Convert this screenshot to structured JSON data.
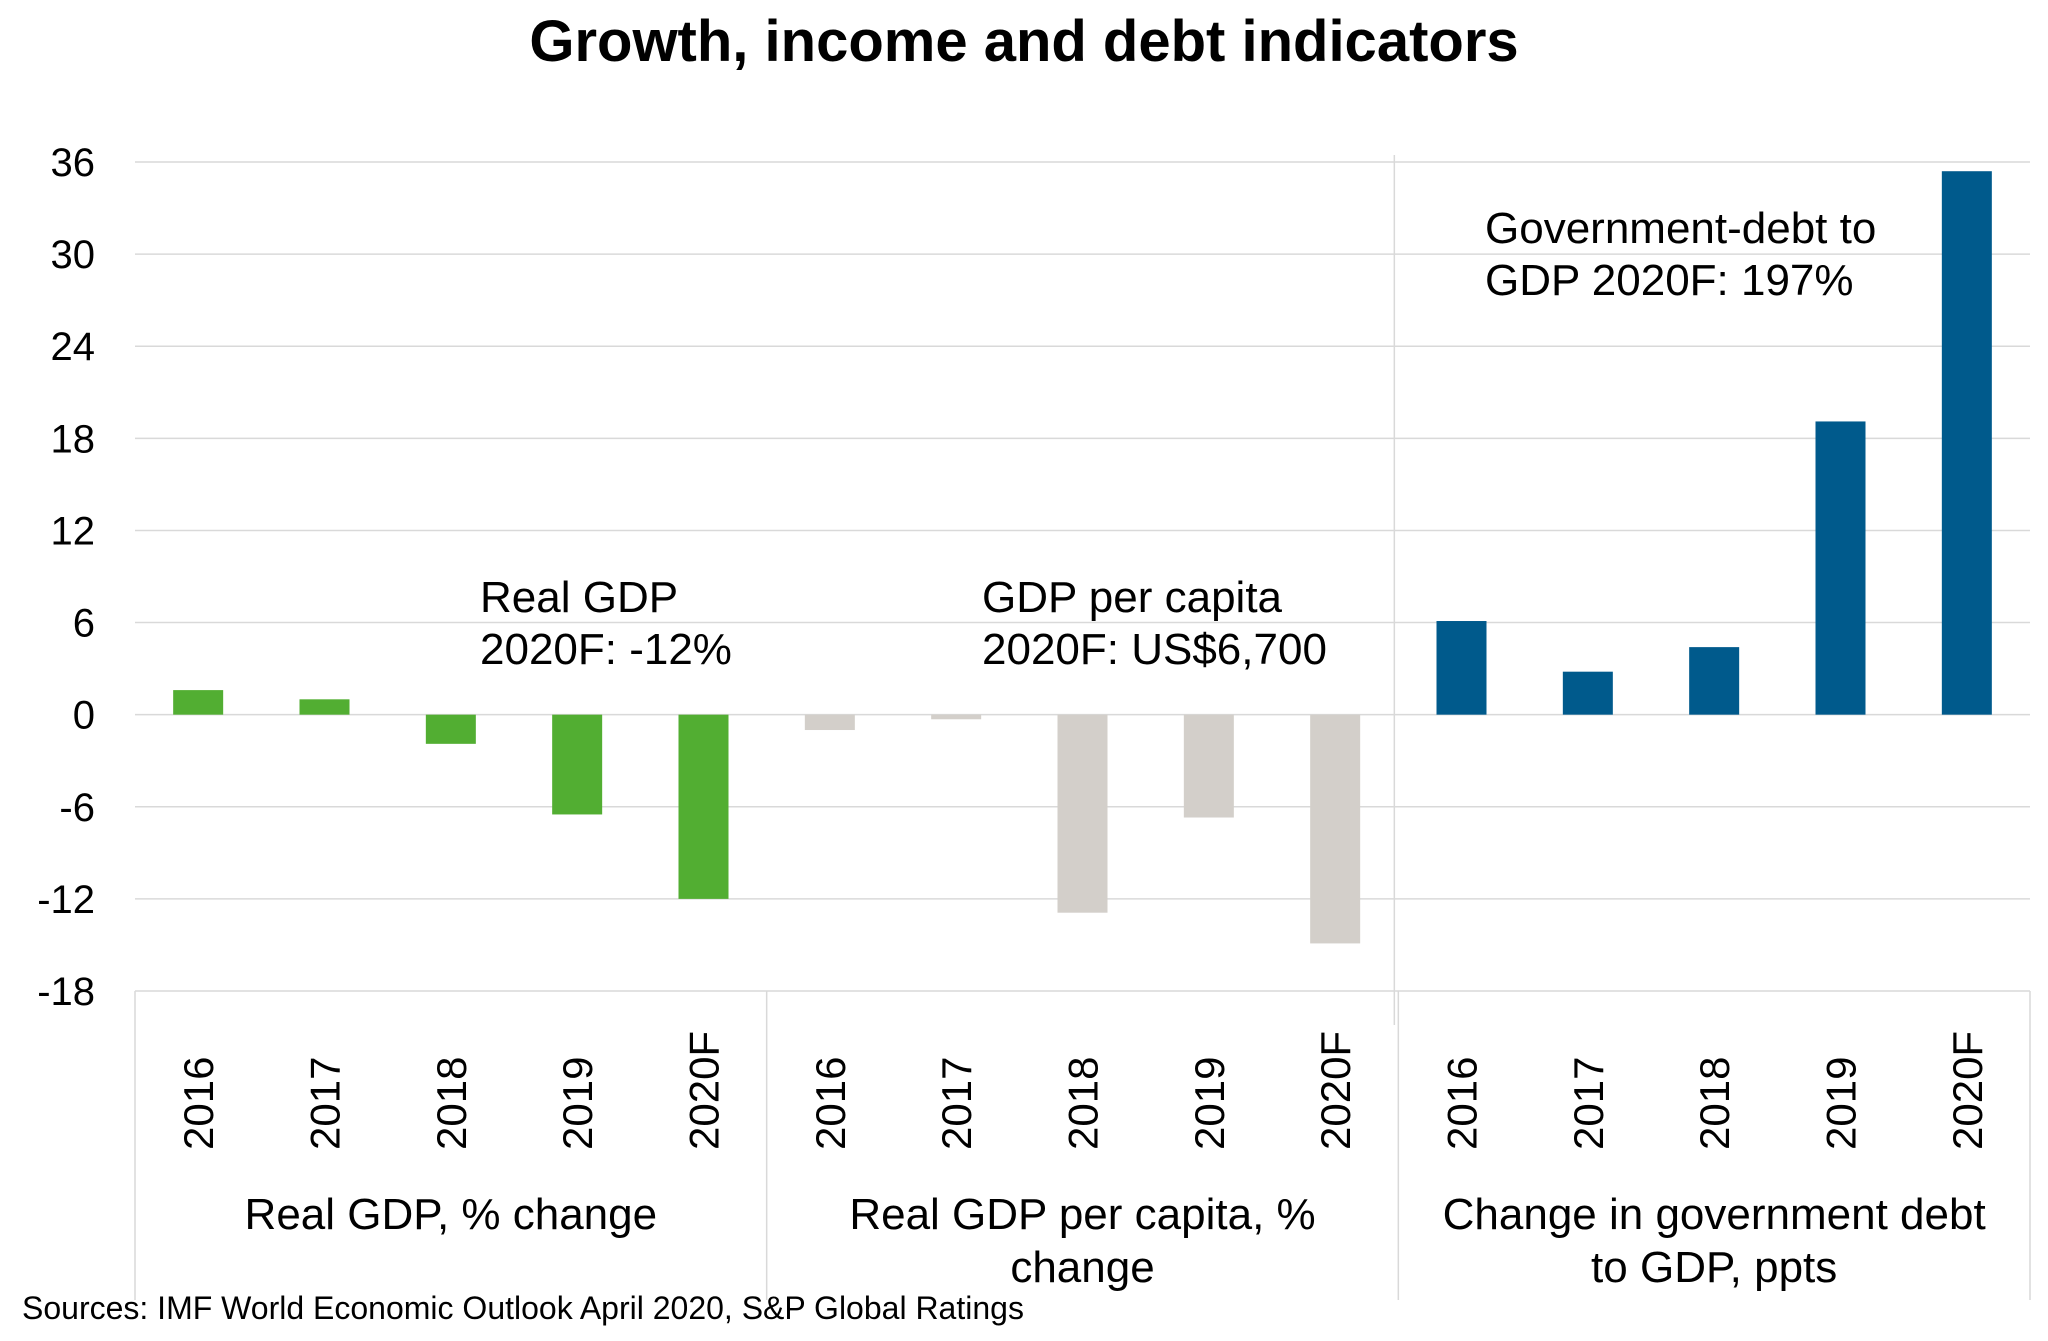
{
  "title": "Growth, income and debt indicators",
  "source": "Sources: IMF World Economic  Outlook April 2020, S&P Global Ratings",
  "colors": {
    "green": "#52ae32",
    "grey": "#d3cfca",
    "blue": "#005a8c",
    "grid": "#d9d9d9"
  },
  "chart_data": {
    "type": "bar",
    "title": "Growth, income and debt indicators",
    "ylim": [
      -18,
      36
    ],
    "yticks": [
      36,
      30,
      24,
      18,
      12,
      6,
      0,
      -6,
      -12,
      -18
    ],
    "grid": true,
    "groups": [
      {
        "name": "Real GDP, % change",
        "name_lines": [
          "Real GDP, % change"
        ],
        "color_key": "green",
        "categories": [
          "2016",
          "2017",
          "2018",
          "2019",
          "2020F"
        ],
        "values": [
          1.6,
          1.0,
          -1.9,
          -6.5,
          -12.0
        ],
        "annotation": [
          "Real GDP",
          "2020F: -12%"
        ]
      },
      {
        "name": "Real GDP per capita, % change",
        "name_lines": [
          "Real GDP per capita, %",
          "change"
        ],
        "color_key": "grey",
        "categories": [
          "2016",
          "2017",
          "2018",
          "2019",
          "2020F"
        ],
        "values": [
          -1.0,
          -0.3,
          -12.9,
          -6.7,
          -14.9
        ],
        "annotation": [
          "GDP per capita",
          "2020F: US$6,700"
        ]
      },
      {
        "name": "Change in government debt to GDP, ppts",
        "name_lines": [
          "Change in government debt",
          "to GDP, ppts"
        ],
        "color_key": "blue",
        "categories": [
          "2016",
          "2017",
          "2018",
          "2019",
          "2020F"
        ],
        "values": [
          6.1,
          2.8,
          4.4,
          19.1,
          35.4
        ],
        "annotation": [
          "Government-debt to",
          "GDP 2020F: 197%"
        ]
      }
    ]
  }
}
